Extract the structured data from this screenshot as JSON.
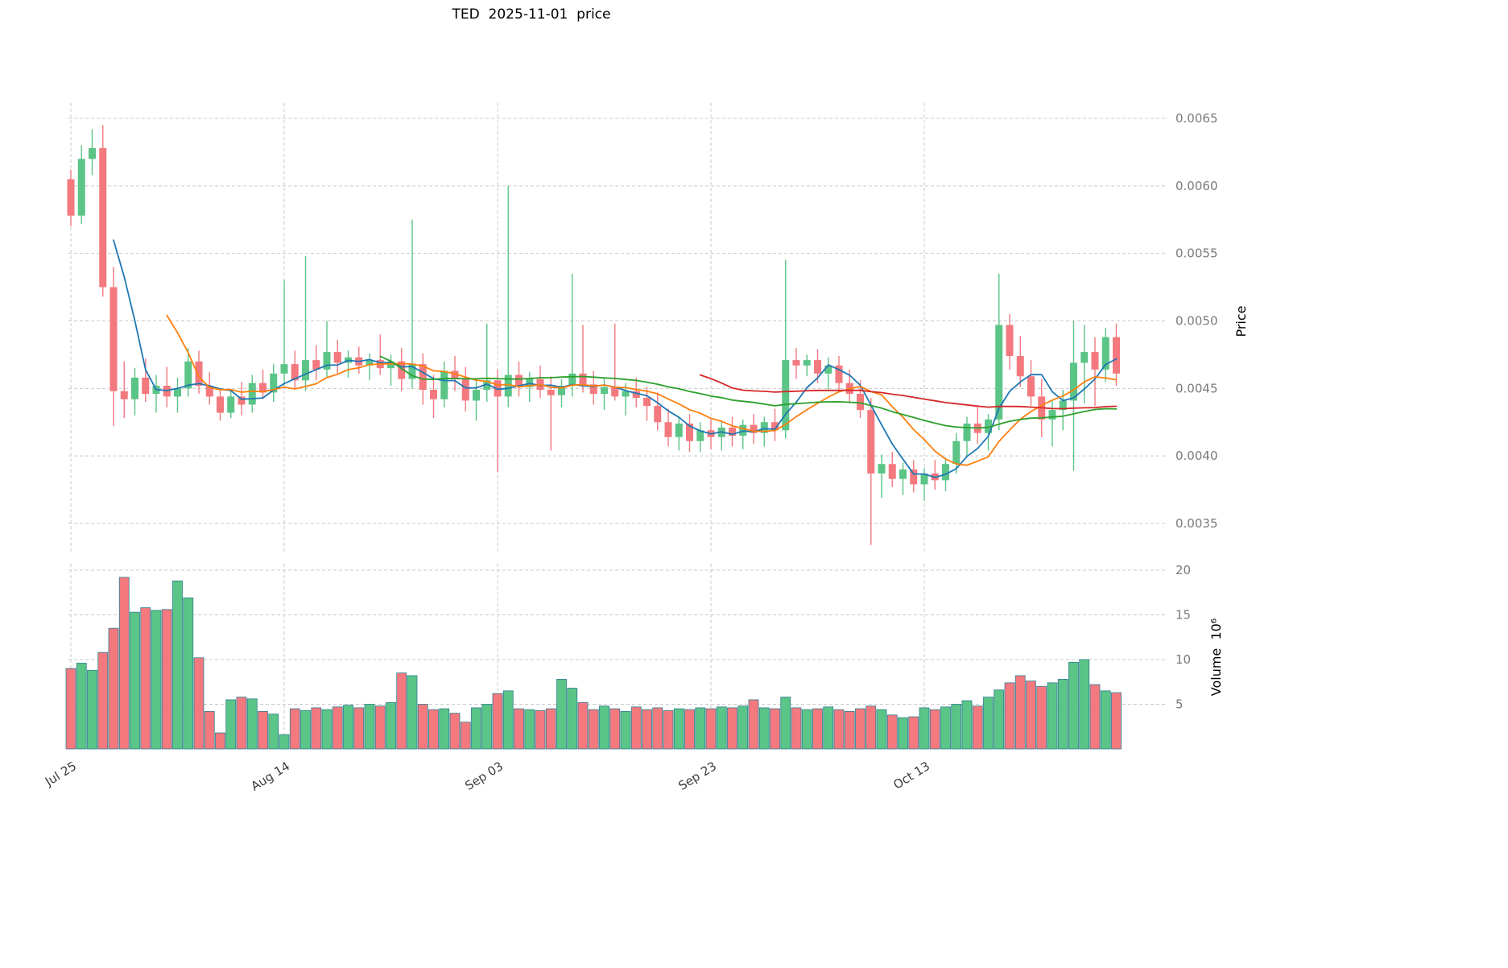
{
  "title": "TED  2025-11-01  price",
  "colors": {
    "up_candle": "#5bc487",
    "down_candle": "#f3797f",
    "volume_edge": "#2f7e8f",
    "grid": "#c9c9c9",
    "background": "#ffffff"
  },
  "chart_data": {
    "type": "candlestick",
    "panels": [
      "price",
      "volume"
    ],
    "grid": "dashed",
    "price_axis": {
      "label": "Price",
      "min": 0.0035,
      "max": 0.0065,
      "ticks": [
        0.0035,
        0.004,
        0.0045,
        0.005,
        0.0055,
        0.006,
        0.0065
      ]
    },
    "volume_axis": {
      "label": "Volume  10⁶",
      "unit": 1000000,
      "ticks": [
        5,
        10,
        15,
        20
      ]
    },
    "x_ticks": [
      {
        "day": 0,
        "label": "Jul 25"
      },
      {
        "day": 20,
        "label": "Aug 14"
      },
      {
        "day": 40,
        "label": "Sep 03"
      },
      {
        "day": 60,
        "label": "Sep 23"
      },
      {
        "day": 80,
        "label": "Oct 13"
      }
    ],
    "moving_averages": [
      {
        "name": "MA5",
        "window": 5,
        "color": "#1f77b4"
      },
      {
        "name": "MA10",
        "window": 10,
        "color": "#ff7f0e"
      },
      {
        "name": "MA30",
        "window": 30,
        "color": "#2ca02c"
      },
      {
        "name": "MA60",
        "window": 60,
        "color": "#d62728"
      }
    ],
    "ohlcv_columns": [
      "date",
      "open",
      "high",
      "low",
      "close",
      "volume_millions"
    ],
    "ohlcv": [
      [
        "2025-07-25",
        0.00605,
        0.00612,
        0.0057,
        0.00578,
        9.0
      ],
      [
        "2025-07-26",
        0.00578,
        0.0063,
        0.00572,
        0.0062,
        9.6
      ],
      [
        "2025-07-27",
        0.0062,
        0.00642,
        0.00608,
        0.00628,
        8.8
      ],
      [
        "2025-07-28",
        0.00628,
        0.00645,
        0.00518,
        0.00525,
        10.8
      ],
      [
        "2025-07-29",
        0.00525,
        0.0054,
        0.00422,
        0.00448,
        13.5
      ],
      [
        "2025-07-30",
        0.00448,
        0.0047,
        0.00428,
        0.00442,
        19.2
      ],
      [
        "2025-07-31",
        0.00442,
        0.00465,
        0.0043,
        0.00458,
        15.3
      ],
      [
        "2025-08-01",
        0.00458,
        0.00472,
        0.0044,
        0.00446,
        15.8
      ],
      [
        "2025-08-02",
        0.00446,
        0.0046,
        0.00432,
        0.00452,
        15.5
      ],
      [
        "2025-08-03",
        0.00452,
        0.00466,
        0.00436,
        0.00444,
        15.6
      ],
      [
        "2025-08-04",
        0.00444,
        0.00458,
        0.00432,
        0.0045,
        18.8
      ],
      [
        "2025-08-05",
        0.0045,
        0.0048,
        0.00444,
        0.0047,
        16.9
      ],
      [
        "2025-08-06",
        0.0047,
        0.00478,
        0.00446,
        0.00452,
        10.2
      ],
      [
        "2025-08-07",
        0.00452,
        0.00462,
        0.00438,
        0.00444,
        4.2
      ],
      [
        "2025-08-08",
        0.00444,
        0.0045,
        0.00426,
        0.00432,
        1.8
      ],
      [
        "2025-08-09",
        0.00432,
        0.00448,
        0.00428,
        0.00444,
        5.5
      ],
      [
        "2025-08-10",
        0.00444,
        0.00455,
        0.0043,
        0.00438,
        5.8
      ],
      [
        "2025-08-11",
        0.00438,
        0.0046,
        0.00432,
        0.00454,
        5.6
      ],
      [
        "2025-08-12",
        0.00454,
        0.00464,
        0.00442,
        0.00447,
        4.2
      ],
      [
        "2025-08-13",
        0.00447,
        0.00468,
        0.0044,
        0.00461,
        3.9
      ],
      [
        "2025-08-14",
        0.00461,
        0.0053,
        0.00452,
        0.00468,
        1.6
      ],
      [
        "2025-08-15",
        0.00468,
        0.00478,
        0.0045,
        0.00456,
        4.5
      ],
      [
        "2025-08-16",
        0.00456,
        0.00548,
        0.00448,
        0.00471,
        4.3
      ],
      [
        "2025-08-17",
        0.00471,
        0.00482,
        0.00456,
        0.00464,
        4.6
      ],
      [
        "2025-08-18",
        0.00464,
        0.005,
        0.00458,
        0.00477,
        4.4
      ],
      [
        "2025-08-19",
        0.00477,
        0.00486,
        0.0046,
        0.00469,
        4.7
      ],
      [
        "2025-08-20",
        0.00469,
        0.00478,
        0.00458,
        0.00473,
        4.9
      ],
      [
        "2025-08-21",
        0.00473,
        0.00481,
        0.00461,
        0.00467,
        4.6
      ],
      [
        "2025-08-22",
        0.00467,
        0.00476,
        0.00456,
        0.00471,
        5.0
      ],
      [
        "2025-08-23",
        0.00471,
        0.0049,
        0.0046,
        0.00465,
        4.8
      ],
      [
        "2025-08-24",
        0.00465,
        0.00475,
        0.00452,
        0.0047,
        5.2
      ],
      [
        "2025-08-25",
        0.0047,
        0.0048,
        0.00448,
        0.00457,
        8.5
      ],
      [
        "2025-08-26",
        0.00457,
        0.00575,
        0.0045,
        0.00468,
        8.2
      ],
      [
        "2025-08-27",
        0.00468,
        0.00476,
        0.00438,
        0.00449,
        5.0
      ],
      [
        "2025-08-28",
        0.00449,
        0.0046,
        0.00428,
        0.00442,
        4.4
      ],
      [
        "2025-08-29",
        0.00442,
        0.0047,
        0.00436,
        0.00463,
        4.5
      ],
      [
        "2025-08-30",
        0.00463,
        0.00474,
        0.00448,
        0.00457,
        4.0
      ],
      [
        "2025-08-31",
        0.00457,
        0.00466,
        0.00433,
        0.00441,
        3.0
      ],
      [
        "2025-09-01",
        0.00441,
        0.00456,
        0.00426,
        0.00449,
        4.6
      ],
      [
        "2025-09-02",
        0.00449,
        0.00498,
        0.0044,
        0.00456,
        5.0
      ],
      [
        "2025-09-03",
        0.00456,
        0.00464,
        0.00388,
        0.00444,
        6.2
      ],
      [
        "2025-09-04",
        0.00444,
        0.006,
        0.00436,
        0.0046,
        6.5
      ],
      [
        "2025-09-05",
        0.0046,
        0.0047,
        0.00444,
        0.00451,
        4.5
      ],
      [
        "2025-09-06",
        0.00451,
        0.00462,
        0.0044,
        0.00457,
        4.4
      ],
      [
        "2025-09-07",
        0.00457,
        0.00467,
        0.00443,
        0.00449,
        4.3
      ],
      [
        "2025-09-08",
        0.00449,
        0.00459,
        0.00404,
        0.00445,
        4.5
      ],
      [
        "2025-09-09",
        0.00445,
        0.00457,
        0.00436,
        0.00452,
        7.8
      ],
      [
        "2025-09-10",
        0.00452,
        0.00535,
        0.00444,
        0.00461,
        6.8
      ],
      [
        "2025-09-11",
        0.00461,
        0.00497,
        0.00447,
        0.00453,
        5.2
      ],
      [
        "2025-09-12",
        0.00453,
        0.00463,
        0.00438,
        0.00446,
        4.4
      ],
      [
        "2025-09-13",
        0.00446,
        0.00457,
        0.00434,
        0.00451,
        4.8
      ],
      [
        "2025-09-14",
        0.00451,
        0.00498,
        0.00441,
        0.00444,
        4.5
      ],
      [
        "2025-09-15",
        0.00444,
        0.00454,
        0.0043,
        0.00448,
        4.2
      ],
      [
        "2025-09-16",
        0.00448,
        0.00458,
        0.00436,
        0.00443,
        4.7
      ],
      [
        "2025-09-17",
        0.00443,
        0.00451,
        0.00426,
        0.00437,
        4.4
      ],
      [
        "2025-09-18",
        0.00437,
        0.00447,
        0.00419,
        0.00425,
        4.6
      ],
      [
        "2025-09-19",
        0.00425,
        0.00435,
        0.00407,
        0.00414,
        4.3
      ],
      [
        "2025-09-20",
        0.00414,
        0.00429,
        0.00404,
        0.00424,
        4.5
      ],
      [
        "2025-09-21",
        0.00424,
        0.00431,
        0.00403,
        0.00411,
        4.4
      ],
      [
        "2025-09-22",
        0.00411,
        0.00425,
        0.00403,
        0.00419,
        4.6
      ],
      [
        "2025-09-23",
        0.00419,
        0.00427,
        0.00405,
        0.00414,
        4.5
      ],
      [
        "2025-09-24",
        0.00414,
        0.00425,
        0.00404,
        0.00421,
        4.7
      ],
      [
        "2025-09-25",
        0.00421,
        0.00429,
        0.00407,
        0.00415,
        4.6
      ],
      [
        "2025-09-26",
        0.00415,
        0.00427,
        0.00405,
        0.00423,
        4.8
      ],
      [
        "2025-09-27",
        0.00423,
        0.00431,
        0.00409,
        0.00417,
        5.5
      ],
      [
        "2025-09-28",
        0.00417,
        0.00429,
        0.00407,
        0.00425,
        4.6
      ],
      [
        "2025-09-29",
        0.00425,
        0.00435,
        0.00411,
        0.00419,
        4.5
      ],
      [
        "2025-09-30",
        0.00419,
        0.00545,
        0.00413,
        0.00471,
        5.8
      ],
      [
        "2025-10-01",
        0.00471,
        0.0048,
        0.00457,
        0.00467,
        4.6
      ],
      [
        "2025-10-02",
        0.00467,
        0.00475,
        0.00459,
        0.00471,
        4.4
      ],
      [
        "2025-10-03",
        0.00471,
        0.00479,
        0.00454,
        0.00461,
        4.5
      ],
      [
        "2025-10-04",
        0.00461,
        0.00473,
        0.00449,
        0.00467,
        4.7
      ],
      [
        "2025-10-05",
        0.00467,
        0.00474,
        0.00447,
        0.00454,
        4.4
      ],
      [
        "2025-10-06",
        0.00454,
        0.00464,
        0.00439,
        0.00446,
        4.2
      ],
      [
        "2025-10-07",
        0.00446,
        0.00456,
        0.00428,
        0.00434,
        4.5
      ],
      [
        "2025-10-08",
        0.00434,
        0.00443,
        0.00334,
        0.00387,
        4.8
      ],
      [
        "2025-10-09",
        0.00387,
        0.00401,
        0.00369,
        0.00394,
        4.4
      ],
      [
        "2025-10-10",
        0.00394,
        0.00403,
        0.00377,
        0.00383,
        3.8
      ],
      [
        "2025-10-11",
        0.00383,
        0.00395,
        0.00371,
        0.0039,
        3.5
      ],
      [
        "2025-10-12",
        0.0039,
        0.00397,
        0.00373,
        0.00379,
        3.6
      ],
      [
        "2025-10-13",
        0.00379,
        0.00391,
        0.00367,
        0.00387,
        4.6
      ],
      [
        "2025-10-14",
        0.00387,
        0.00397,
        0.00375,
        0.00382,
        4.4
      ],
      [
        "2025-10-15",
        0.00382,
        0.00399,
        0.00374,
        0.00394,
        4.7
      ],
      [
        "2025-10-16",
        0.00394,
        0.00417,
        0.00387,
        0.00411,
        5.0
      ],
      [
        "2025-10-17",
        0.00411,
        0.00429,
        0.00399,
        0.00424,
        5.4
      ],
      [
        "2025-10-18",
        0.00424,
        0.00437,
        0.00409,
        0.00417,
        4.8
      ],
      [
        "2025-10-19",
        0.00417,
        0.00431,
        0.00404,
        0.00427,
        5.8
      ],
      [
        "2025-10-20",
        0.00427,
        0.00535,
        0.00419,
        0.00497,
        6.6
      ],
      [
        "2025-10-21",
        0.00497,
        0.00505,
        0.00464,
        0.00474,
        7.4
      ],
      [
        "2025-10-22",
        0.00474,
        0.00489,
        0.00451,
        0.00459,
        8.2
      ],
      [
        "2025-10-23",
        0.00459,
        0.00471,
        0.00437,
        0.00444,
        7.6
      ],
      [
        "2025-10-24",
        0.00444,
        0.00457,
        0.00414,
        0.00427,
        7.0
      ],
      [
        "2025-10-25",
        0.00427,
        0.00441,
        0.00407,
        0.00434,
        7.4
      ],
      [
        "2025-10-26",
        0.00434,
        0.00449,
        0.00419,
        0.00441,
        7.8
      ],
      [
        "2025-10-27",
        0.00441,
        0.005,
        0.00389,
        0.00469,
        9.7
      ],
      [
        "2025-10-28",
        0.00469,
        0.00497,
        0.00439,
        0.00477,
        10.0
      ],
      [
        "2025-10-29",
        0.00477,
        0.00488,
        0.00437,
        0.00464,
        7.2
      ],
      [
        "2025-10-30",
        0.00464,
        0.00495,
        0.00455,
        0.00488,
        6.5
      ],
      [
        "2025-10-31",
        0.00488,
        0.00498,
        0.00452,
        0.00461,
        6.3
      ]
    ]
  }
}
